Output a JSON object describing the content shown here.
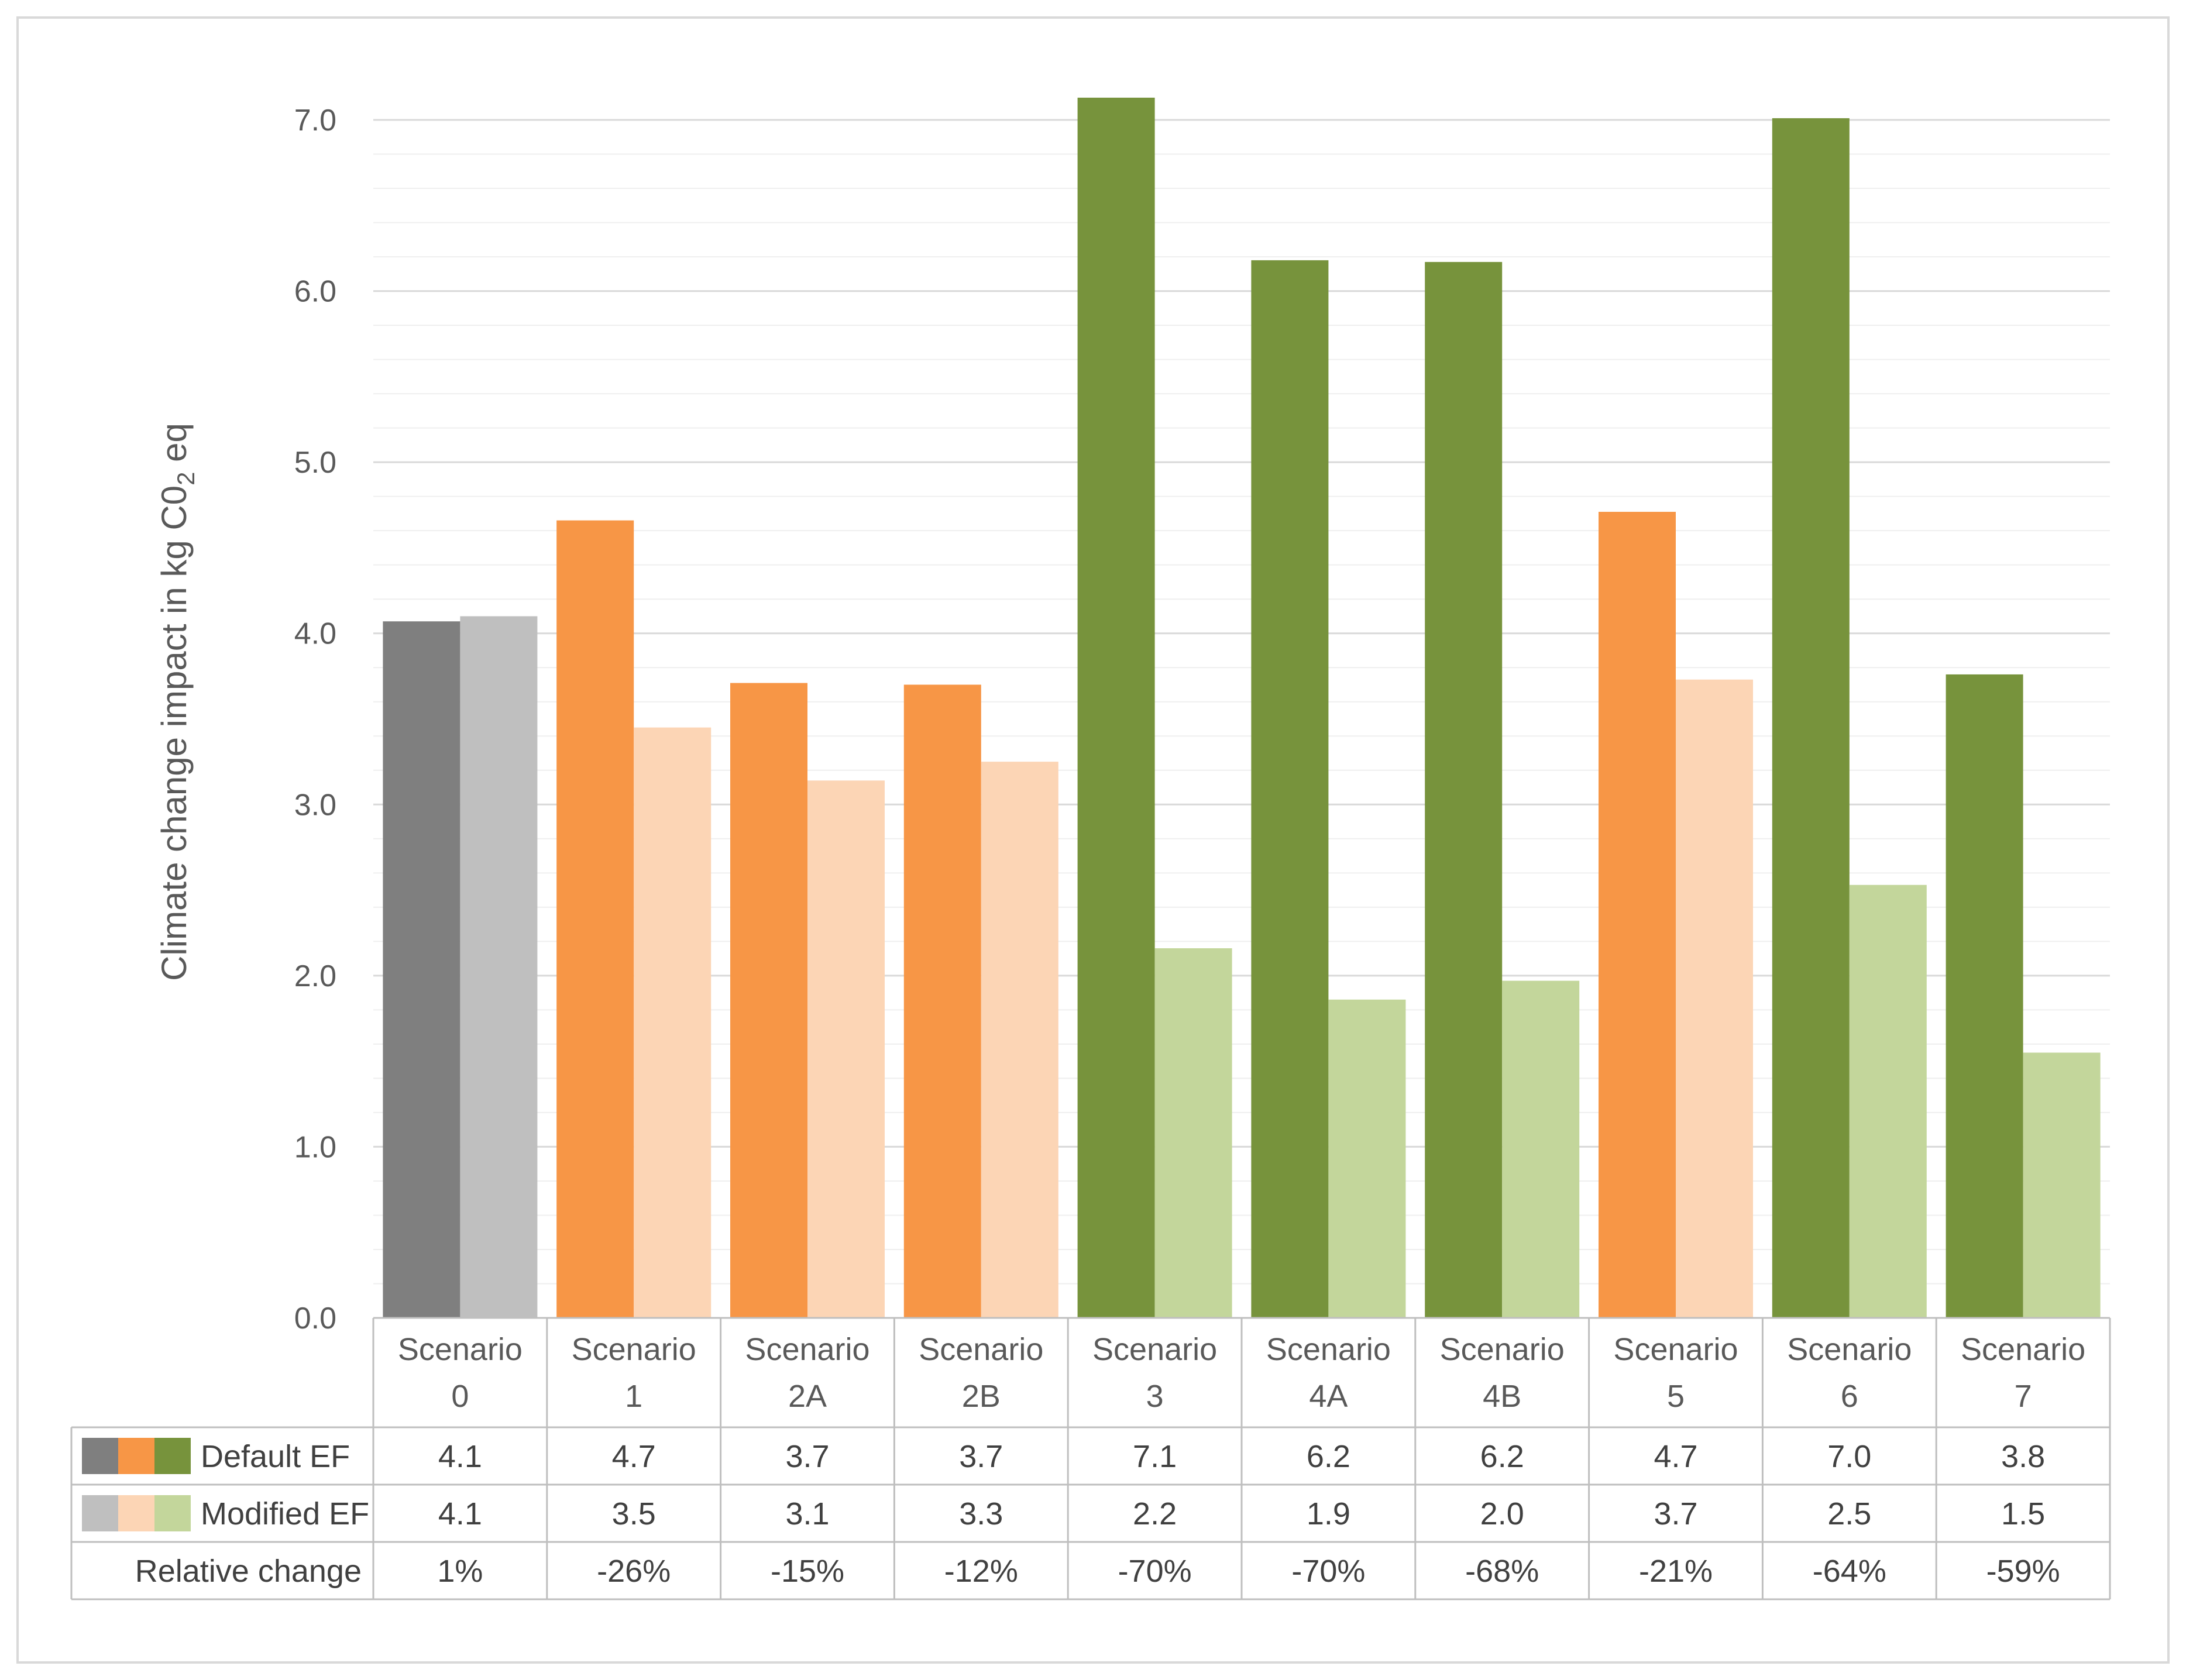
{
  "chart_data": {
    "type": "bar",
    "title": "",
    "ylabel_prefix": "Climate change impact in kg C0",
    "ylabel_sub": "2",
    "ylabel_suffix": " eq",
    "ylim": [
      0,
      7.0
    ],
    "yticks": [
      "0.0",
      "1.0",
      "2.0",
      "3.0",
      "4.0",
      "5.0",
      "6.0",
      "7.0"
    ],
    "grid": true,
    "categories": [
      {
        "line1": "Scenario",
        "line2": "0"
      },
      {
        "line1": "Scenario",
        "line2": "1"
      },
      {
        "line1": "Scenario",
        "line2": "2A"
      },
      {
        "line1": "Scenario",
        "line2": "2B"
      },
      {
        "line1": "Scenario",
        "line2": "3"
      },
      {
        "line1": "Scenario",
        "line2": "4A"
      },
      {
        "line1": "Scenario",
        "line2": "4B"
      },
      {
        "line1": "Scenario",
        "line2": "5"
      },
      {
        "line1": "Scenario",
        "line2": "6"
      },
      {
        "line1": "Scenario",
        "line2": "7"
      }
    ],
    "series": [
      {
        "name": "Default EF",
        "values": [
          4.07,
          4.66,
          3.71,
          3.7,
          7.13,
          6.18,
          6.17,
          4.71,
          7.01,
          3.76
        ],
        "labels": [
          "4.1",
          "4.7",
          "3.7",
          "3.7",
          "7.1",
          "6.2",
          "6.2",
          "4.7",
          "7.0",
          "3.8"
        ]
      },
      {
        "name": "Modified EF",
        "values": [
          4.1,
          3.45,
          3.14,
          3.25,
          2.16,
          1.86,
          1.97,
          3.73,
          2.53,
          1.55
        ],
        "labels": [
          "4.1",
          "3.5",
          "3.1",
          "3.3",
          "2.2",
          "1.9",
          "2.0",
          "3.7",
          "2.5",
          "1.5"
        ]
      }
    ],
    "relative_change": {
      "name": "Relative change",
      "values": [
        "1%",
        "-26%",
        "-15%",
        "-12%",
        "-70%",
        "-70%",
        "-68%",
        "-21%",
        "-64%",
        "-59%"
      ]
    },
    "colors": {
      "default": [
        "#7f7f7f",
        "#f79646",
        "#f79646",
        "#f79646",
        "#77933c",
        "#77933c",
        "#77933c",
        "#f79646",
        "#77933c",
        "#77933c"
      ],
      "modified": [
        "#bfbfbf",
        "#fcd5b5",
        "#fcd5b5",
        "#fcd5b5",
        "#c3d69b",
        "#c3d69b",
        "#c3d69b",
        "#fcd5b5",
        "#c3d69b",
        "#c3d69b"
      ],
      "legend_default": [
        "#7f7f7f",
        "#f79646",
        "#77933c"
      ],
      "legend_modified": [
        "#bfbfbf",
        "#fcd5b5",
        "#c3d69b"
      ],
      "gridline": "#d9d9d9",
      "minor_gridline": "#efefef",
      "table_border": "#bfbfbf",
      "frame": "#d9d9d9"
    }
  }
}
